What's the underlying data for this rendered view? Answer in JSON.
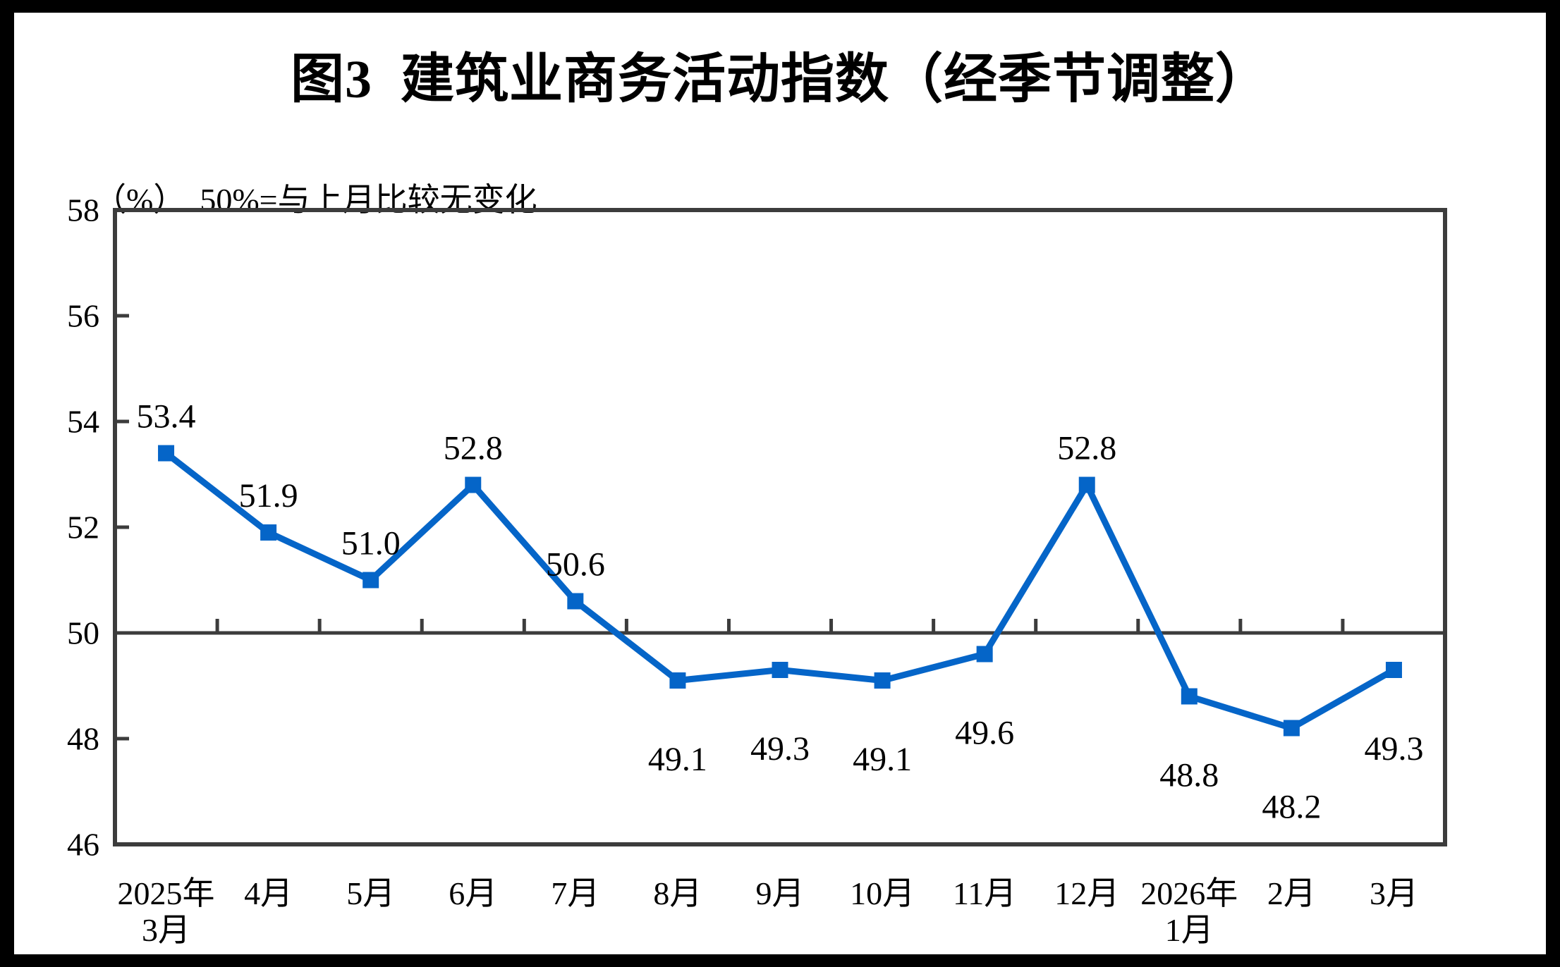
{
  "chart_data": {
    "type": "line",
    "title": "图3  建筑业商务活动指数（经季节调整）",
    "unit_label": "（%）",
    "subtitle": "50%=与上月比较无变化",
    "categories": [
      "2025年\n3月",
      "4月",
      "5月",
      "6月",
      "7月",
      "8月",
      "9月",
      "10月",
      "11月",
      "12月",
      "2026年\n1月",
      "2月",
      "3月"
    ],
    "values": [
      53.4,
      51.9,
      51.0,
      52.8,
      50.6,
      49.1,
      49.3,
      49.1,
      49.6,
      52.8,
      48.8,
      48.2,
      49.3
    ],
    "value_labels": [
      "53.4",
      "51.9",
      "51.0",
      "52.8",
      "50.6",
      "49.1",
      "49.3",
      "49.1",
      "49.6",
      "52.8",
      "48.8",
      "48.2",
      "49.3"
    ],
    "label_positions": [
      "above",
      "above",
      "above",
      "above",
      "above",
      "below",
      "below",
      "below",
      "below",
      "above",
      "below",
      "below",
      "below"
    ],
    "ylim": [
      46,
      58
    ],
    "yticks": [
      58,
      56,
      54,
      52,
      50,
      48,
      46
    ],
    "ytick_labels": [
      "58",
      "56",
      "54",
      "52",
      "50",
      "48",
      "46"
    ],
    "reference_line": 50,
    "legend": [],
    "grid": "off",
    "line_color": "#0565C8",
    "axis_color": "#3C3C3C",
    "text_color": "#000000",
    "marker": "square"
  }
}
